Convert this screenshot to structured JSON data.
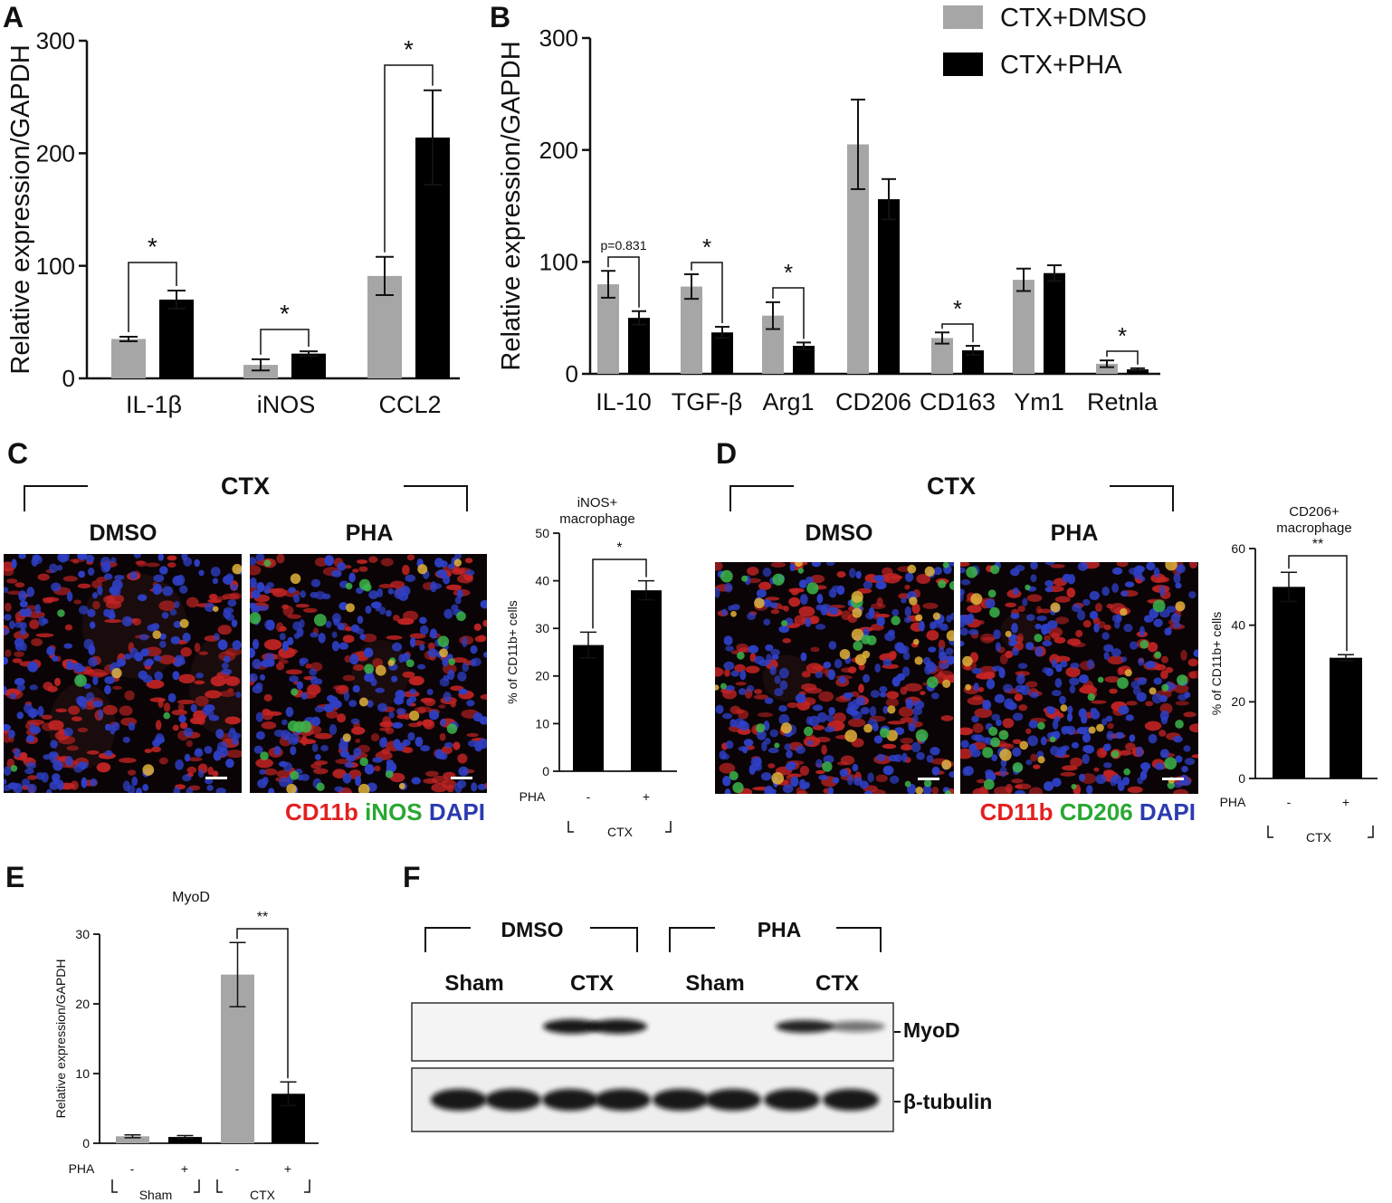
{
  "panels": {
    "A": {
      "letter": "A"
    },
    "B": {
      "letter": "B"
    },
    "C": {
      "letter": "C",
      "group": "CTX",
      "left_label": "DMSO",
      "right_label": "PHA",
      "stain": [
        {
          "text": "CD11b",
          "color": "#e32020"
        },
        {
          "text": "iNOS",
          "color": "#2aa832"
        },
        {
          "text": "DAPI",
          "color": "#2b3bb0"
        }
      ]
    },
    "D": {
      "letter": "D",
      "group": "CTX",
      "left_label": "DMSO",
      "right_label": "PHA",
      "stain": [
        {
          "text": "CD11b",
          "color": "#e32020"
        },
        {
          "text": "CD206",
          "color": "#2aa832"
        },
        {
          "text": "DAPI",
          "color": "#2b3bb0"
        }
      ]
    },
    "E": {
      "letter": "E"
    },
    "F": {
      "letter": "F",
      "group_left": "DMSO",
      "group_right": "PHA",
      "lanes": [
        "Sham",
        "CTX",
        "Sham",
        "CTX"
      ],
      "rows": [
        "MyoD",
        "β-tubulin"
      ]
    }
  },
  "legend": [
    {
      "label": "CTX+DMSO",
      "color": "#a6a6a7"
    },
    {
      "label": "CTX+PHA",
      "color": "#000000"
    }
  ],
  "colors": {
    "gray_bar": "#a6a6a7",
    "black_bar": "#000000"
  },
  "chart_data": [
    {
      "id": "A",
      "type": "bar",
      "ylabel": "Relative expression/GAPDH",
      "ylim": [
        0,
        300
      ],
      "yticks": [
        0,
        100,
        200,
        300
      ],
      "categories": [
        "IL-1β",
        "iNOS",
        "CCL2"
      ],
      "series": [
        {
          "name": "CTX+DMSO",
          "values": [
            35,
            12,
            91
          ],
          "errors": [
            2,
            5,
            17
          ]
        },
        {
          "name": "CTX+PHA",
          "values": [
            70,
            22,
            214
          ],
          "errors": [
            8,
            2,
            42
          ]
        }
      ],
      "annotations": [
        "*",
        "*",
        "*"
      ]
    },
    {
      "id": "B",
      "type": "bar",
      "ylabel": "Relative expression/GAPDH",
      "ylim": [
        0,
        300
      ],
      "yticks": [
        0,
        100,
        200,
        300
      ],
      "categories": [
        "IL-10",
        "TGF-β",
        "Arg1",
        "CD206",
        "CD163",
        "Ym1",
        "Retnla"
      ],
      "series": [
        {
          "name": "CTX+DMSO",
          "values": [
            80,
            78,
            52,
            205,
            32,
            84,
            9
          ],
          "errors": [
            12,
            11,
            12,
            40,
            5,
            10,
            3
          ]
        },
        {
          "name": "CTX+PHA",
          "values": [
            50,
            37,
            25,
            156,
            21,
            90,
            4
          ],
          "errors": [
            6,
            5,
            3,
            18,
            4,
            7,
            1
          ]
        }
      ],
      "annotations": [
        "p=0.831",
        "*",
        "*",
        "",
        "*",
        "",
        "*"
      ]
    },
    {
      "id": "C",
      "type": "bar",
      "title": "iNOS+ macrophage",
      "ylabel": "% of CD11b+ cells",
      "ylim": [
        0,
        50
      ],
      "yticks": [
        0,
        10,
        20,
        30,
        40,
        50
      ],
      "categories": [
        "-",
        "+"
      ],
      "row_label": "PHA",
      "group_label": "CTX",
      "values": [
        26.5,
        38
      ],
      "errors": [
        2.7,
        2.0
      ],
      "annotation": "*"
    },
    {
      "id": "D",
      "type": "bar",
      "title": "CD206+ macrophage",
      "ylabel": "% of CD11b+ cells",
      "ylim": [
        0,
        60
      ],
      "yticks": [
        0,
        20,
        40,
        60
      ],
      "categories": [
        "-",
        "+"
      ],
      "row_label": "PHA",
      "group_label": "CTX",
      "values": [
        50,
        31.5
      ],
      "errors": [
        3.8,
        0.8
      ],
      "annotation": "**"
    },
    {
      "id": "E",
      "type": "bar",
      "title": "MyoD",
      "ylabel": "Relative expression/GAPDH",
      "ylim": [
        0,
        30
      ],
      "yticks": [
        0,
        10,
        20,
        30
      ],
      "categories": [
        "-",
        "+",
        "-",
        "+"
      ],
      "row_label": "PHA",
      "groups": [
        "Sham",
        "CTX"
      ],
      "values": [
        1.0,
        0.9,
        24.2,
        7.1
      ],
      "errors": [
        0.2,
        0.2,
        4.6,
        1.7
      ],
      "colors": [
        "#a6a6a7",
        "#000000",
        "#a6a6a7",
        "#000000"
      ],
      "annotation": "**"
    }
  ]
}
